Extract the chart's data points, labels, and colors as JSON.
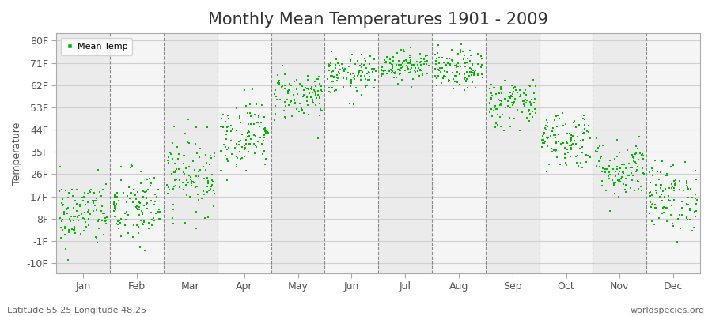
{
  "title": "Monthly Mean Temperatures 1901 - 2009",
  "ylabel": "Temperature",
  "xlabel_bottom_left": "Latitude 55.25 Longitude 48.25",
  "xlabel_bottom_right": "worldspecies.org",
  "legend_label": "Mean Temp",
  "yticks": [
    -10,
    -1,
    8,
    17,
    26,
    35,
    44,
    53,
    62,
    71,
    80
  ],
  "ytick_labels": [
    "-10F",
    "-1F",
    "8F",
    "17F",
    "26F",
    "35F",
    "44F",
    "53F",
    "62F",
    "71F",
    "80F"
  ],
  "ylim": [
    -14,
    83
  ],
  "months": [
    "Jan",
    "Feb",
    "Mar",
    "Apr",
    "May",
    "Jun",
    "Jul",
    "Aug",
    "Sep",
    "Oct",
    "Nov",
    "Dec"
  ],
  "dot_color": "#00BB00",
  "dot_size": 3,
  "background_color": "#ffffff",
  "band_colors": [
    "#ebebeb",
    "#f5f5f5"
  ],
  "grid_color": "#d0d0d0",
  "vline_color": "#888888",
  "title_fontsize": 15,
  "axis_label_fontsize": 9,
  "tick_label_fontsize": 9,
  "monthly_centers": [
    10,
    12,
    26,
    42,
    58,
    66,
    70,
    68,
    55,
    40,
    28,
    17
  ],
  "monthly_spreads": [
    7,
    8,
    8,
    7,
    5,
    4,
    3,
    4,
    5,
    6,
    6,
    7
  ],
  "n_years": 109,
  "seed": 42
}
